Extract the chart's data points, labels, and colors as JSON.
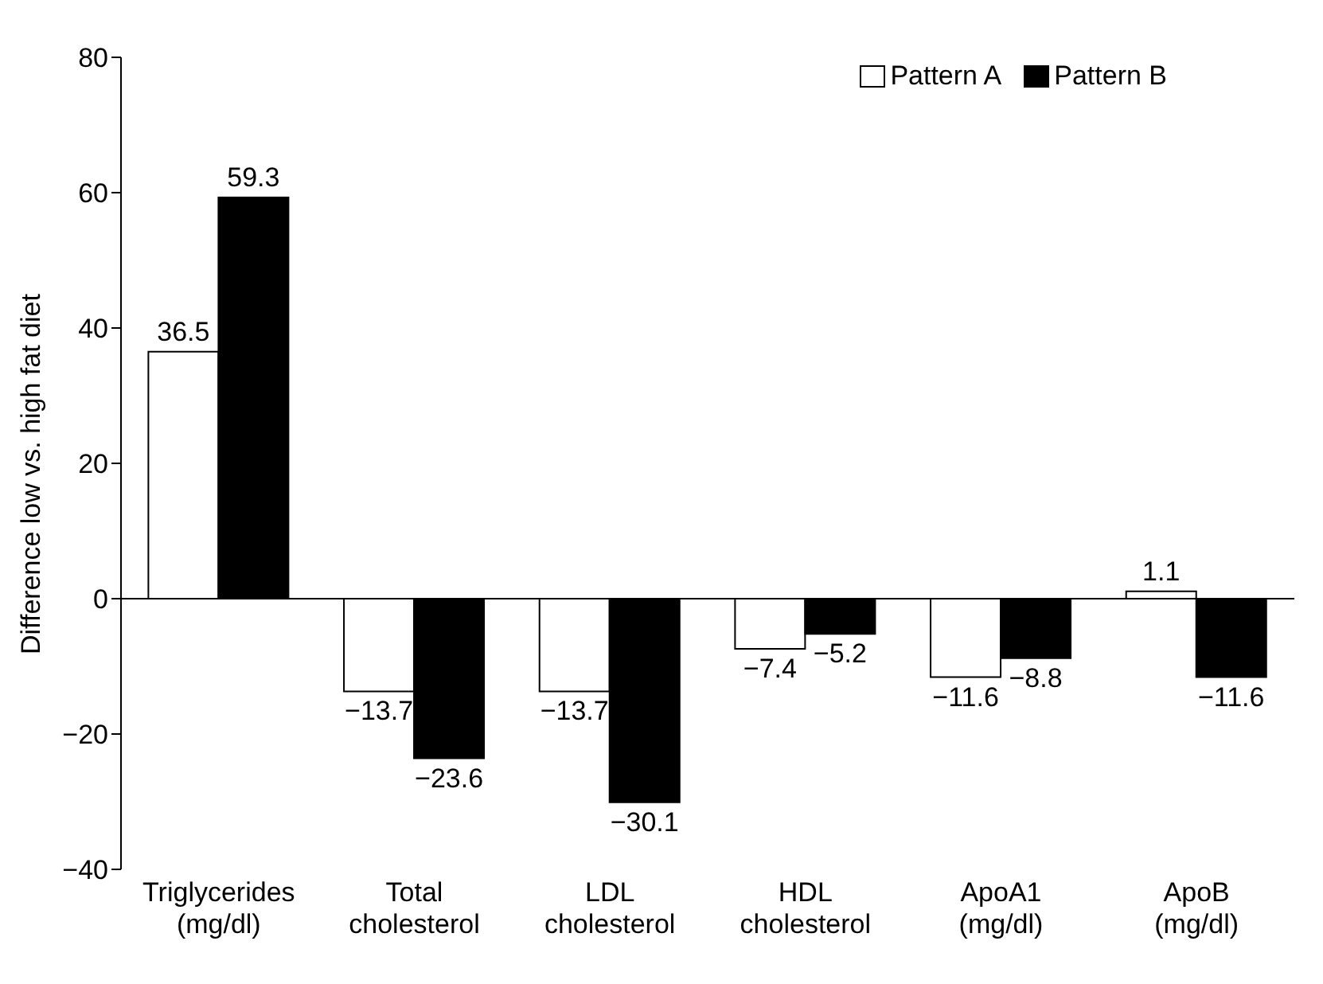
{
  "chart_data": {
    "type": "bar",
    "ylabel": "Difference low vs. high fat diet",
    "categories": [
      "Triglycerides (mg/dl)",
      "Total cholesterol",
      "LDL cholesterol",
      "HDL cholesterol",
      "ApoA1 (mg/dl)",
      "ApoB (mg/dl)"
    ],
    "series": [
      {
        "name": "Pattern A",
        "color": "#ffffff",
        "values": [
          36.5,
          -13.7,
          -13.7,
          -7.4,
          -11.6,
          1.1
        ],
        "value_labels": [
          "36.5",
          "−13.7",
          "−13.7",
          "−7.4",
          "−11.6",
          "1.1"
        ]
      },
      {
        "name": "Pattern B",
        "color": "#000000",
        "values": [
          59.3,
          -23.6,
          -30.1,
          -5.2,
          -8.8,
          -11.6
        ],
        "value_labels": [
          "59.3",
          "−23.6",
          "−30.1",
          "−5.2",
          "−8.8",
          "−11.6"
        ]
      }
    ],
    "ylim": [
      -40,
      80
    ],
    "yticks": [
      {
        "value": -40,
        "label": "−40"
      },
      {
        "value": -20,
        "label": "−20"
      },
      0,
      20,
      40,
      60,
      80
    ],
    "ref_lines": [
      {
        "axis": "y",
        "value": 0,
        "color": "#000000"
      }
    ],
    "legend": "top right",
    "grid": false
  }
}
